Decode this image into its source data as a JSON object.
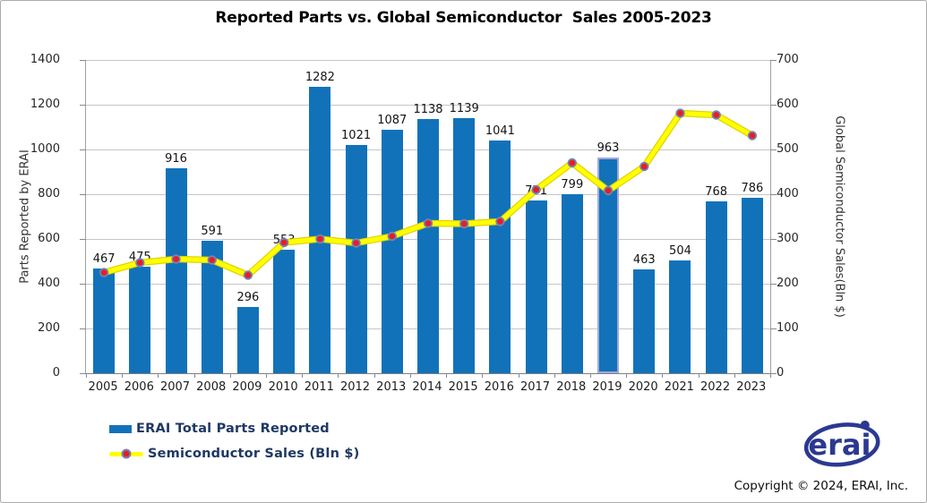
{
  "title": "Reported Parts vs. Global Semiconductor  Sales 2005-2023",
  "chart_data": {
    "type": "combo",
    "title": "Reported Parts vs. Global Semiconductor  Sales 2005-2023",
    "categories": [
      "2005",
      "2006",
      "2007",
      "2008",
      "2009",
      "2010",
      "2011",
      "2012",
      "2013",
      "2014",
      "2015",
      "2016",
      "2017",
      "2018",
      "2019",
      "2020",
      "2021",
      "2022",
      "2023"
    ],
    "series": [
      {
        "name": "ERAI Total Parts Reported",
        "type": "bar",
        "axis": "left",
        "color": "#1172ba",
        "values": [
          467,
          475,
          916,
          591,
          296,
          553,
          1282,
          1021,
          1087,
          1138,
          1139,
          1041,
          771,
          799,
          963,
          463,
          504,
          768,
          786
        ],
        "data_labels": true,
        "highlighted_category": "2019",
        "highlight_border_color": "#a3a8d8"
      },
      {
        "name": "Semiconductor Sales (Bln $)",
        "type": "line",
        "axis": "right",
        "line_color": "#ffff00",
        "line_edge_color": "#e3d200",
        "marker_color": "#ea1c24",
        "marker_ring_color": "#6f86b5",
        "values": [
          225,
          247,
          255,
          253,
          219,
          292,
          300,
          291,
          306,
          335,
          334,
          339,
          410,
          470,
          408,
          462,
          581,
          577,
          531
        ]
      }
    ],
    "left_axis": {
      "title": "Parts Reported by ERAI",
      "min": 0,
      "max": 1400,
      "step": 200,
      "ticks": [
        0,
        200,
        400,
        600,
        800,
        1000,
        1200,
        1400
      ]
    },
    "right_axis": {
      "title": "Global Semiconductor Sales(Bln $)",
      "min": 0,
      "max": 700,
      "step": 100,
      "ticks": [
        0,
        100,
        200,
        300,
        400,
        500,
        600,
        700
      ]
    },
    "grid": true,
    "legend_position": "bottom-left",
    "colors": {
      "gridline": "#c6c6c6",
      "axis_line": "#808080",
      "tick_label": "#262626",
      "data_label": "#141414",
      "legend_text": "#1f3864"
    }
  },
  "footer": {
    "logo_text": "erai",
    "logo_color": "#2b3990",
    "copyright": "Copyright © 2024, ERAI, Inc."
  }
}
